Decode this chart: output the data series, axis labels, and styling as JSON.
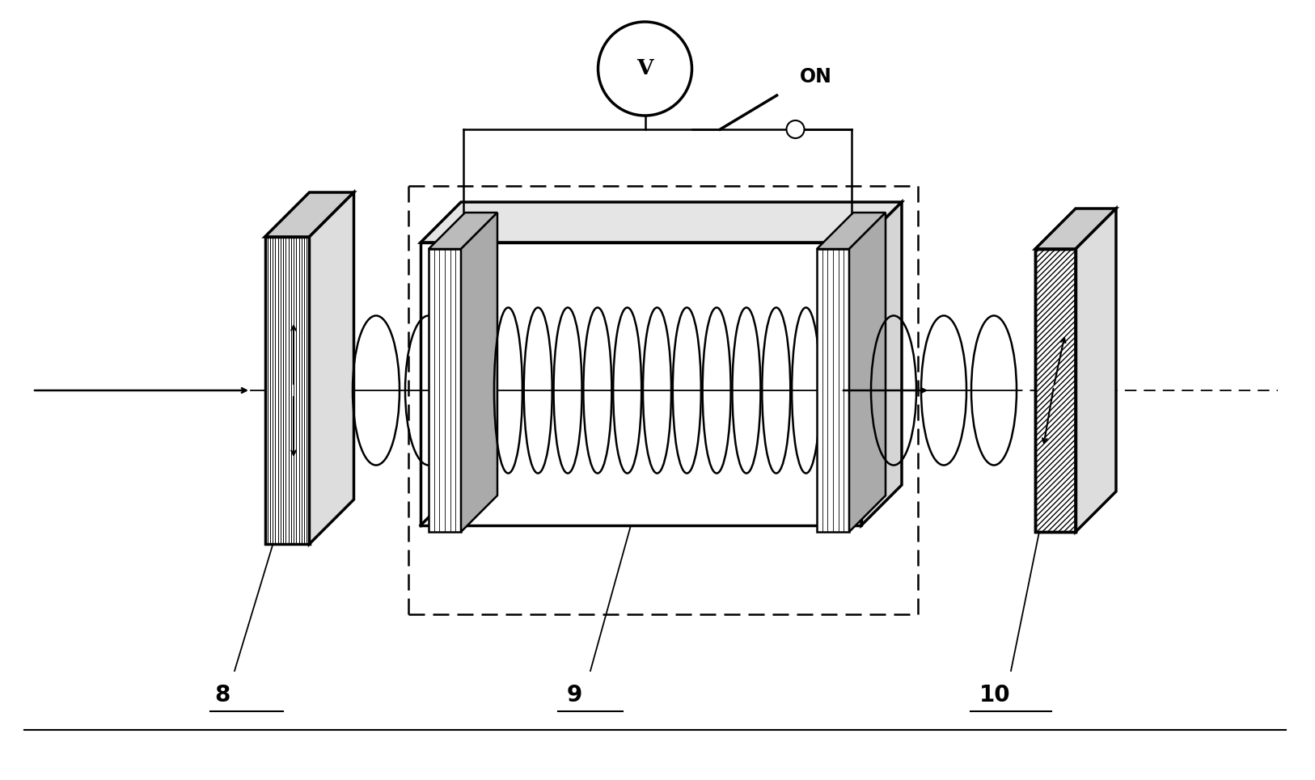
{
  "bg_color": "#ffffff",
  "line_color": "#000000",
  "label_8": "8",
  "label_9": "9",
  "label_10": "10",
  "label_V": "V",
  "label_ON": "ON",
  "fig_width": 16.26,
  "fig_height": 9.65
}
